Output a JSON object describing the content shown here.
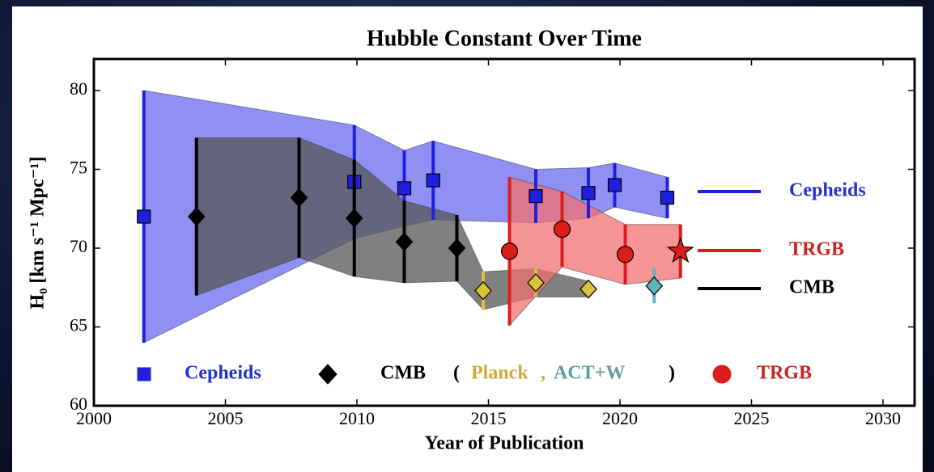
{
  "chart_data": {
    "type": "errorbar",
    "title": "Hubble Constant Over Time",
    "x_label": "Year of Publication",
    "y_label": "H₀ [km s⁻¹ Mpc⁻¹]",
    "xlim": [
      2000,
      2031.2
    ],
    "xticks": [
      2000,
      2005,
      2010,
      2015,
      2020,
      2025,
      2030
    ],
    "ylim": [
      60,
      82
    ],
    "yticks": [
      60,
      65,
      70,
      75,
      80
    ],
    "series": [
      {
        "name": "Cepheids",
        "color": "#1f1fdd",
        "label_color": "#2233cc",
        "marker": "square",
        "band_color": "#6b6bf0",
        "x": [
          2001.9,
          2009.9,
          2011.8,
          2012.9,
          2016.8,
          2018.8,
          2019.8,
          2021.8
        ],
        "values": [
          72,
          74.2,
          73.8,
          74.3,
          73.3,
          73.5,
          74.0,
          73.2
        ],
        "errors": [
          8,
          3.6,
          2.4,
          2.5,
          1.7,
          1.6,
          1.4,
          1.3
        ]
      },
      {
        "name": "CMB",
        "color": "#000000",
        "label_color": "#000000",
        "marker": "diamond",
        "band_color": "#555555",
        "x": [
          2003.9,
          2007.8,
          2009.9,
          2011.8,
          2013.8
        ],
        "values": [
          72,
          73.2,
          71.9,
          70.4,
          70.0
        ],
        "errors": [
          5,
          3.8,
          3.7,
          2.6,
          2.1
        ]
      },
      {
        "name": "Planck",
        "color": "#d9c13a",
        "label_color": "#d4a93a",
        "marker": "diamond",
        "band_color": "#555555",
        "x": [
          2014.8,
          2016.8,
          2018.8
        ],
        "values": [
          67.3,
          67.8,
          67.4
        ],
        "errors": [
          1.2,
          0.9,
          0.5
        ]
      },
      {
        "name": "ACT+W",
        "color": "#5fb5bd",
        "label_color": "#5f9ea0",
        "marker": "diamond",
        "x": [
          2021.3
        ],
        "values": [
          67.6
        ],
        "errors": [
          1.1
        ]
      },
      {
        "name": "TRGB",
        "color": "#dd1c1c",
        "label_color": "#cc2222",
        "marker": "circle",
        "band_color": "#f07070",
        "markers": [
          "circle",
          "circle",
          "circle",
          "star"
        ],
        "x": [
          2015.8,
          2017.8,
          2020.2,
          2022.3
        ],
        "values": [
          69.8,
          71.2,
          69.6,
          69.8
        ],
        "errors": [
          4.7,
          2.4,
          1.9,
          1.7
        ]
      }
    ],
    "legend_punctuation": [
      "(",
      ",",
      ")"
    ],
    "annotations": [
      {
        "text": "Cepheids",
        "color": "#2233cc",
        "line_color": "#1f1fdd"
      },
      {
        "text": "TRGB",
        "color": "#cc2222",
        "line_color": "#dd1c1c"
      },
      {
        "text": "CMB",
        "color": "#000000",
        "line_color": "#000000"
      }
    ]
  }
}
